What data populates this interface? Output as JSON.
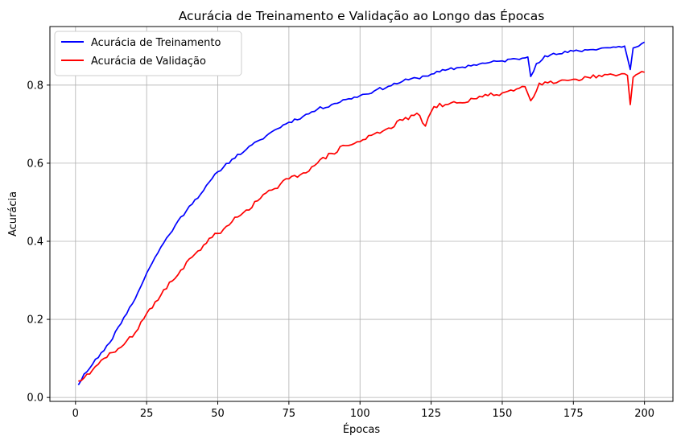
{
  "chart_data": {
    "type": "line",
    "title": "Acurácia de Treinamento e Validação ao Longo das Épocas",
    "xlabel": "Épocas",
    "ylabel": "Acurácia",
    "xlim": [
      -9,
      210
    ],
    "ylim": [
      -0.01,
      0.95
    ],
    "xticks": [
      0,
      25,
      50,
      75,
      100,
      125,
      150,
      175,
      200
    ],
    "yticks": [
      0.0,
      0.2,
      0.4,
      0.6,
      0.8
    ],
    "ytick_labels": [
      "0.0",
      "0.2",
      "0.4",
      "0.6",
      "0.8"
    ],
    "grid": true,
    "legend_position": "top-left",
    "x_start": 1,
    "x_end": 200,
    "series": [
      {
        "name": "Acurácia de Treinamento",
        "color": "#0000ff",
        "keypoints": [
          [
            1,
            0.032
          ],
          [
            3,
            0.06
          ],
          [
            5,
            0.075
          ],
          [
            7,
            0.098
          ],
          [
            10,
            0.12
          ],
          [
            12,
            0.14
          ],
          [
            15,
            0.18
          ],
          [
            17,
            0.205
          ],
          [
            20,
            0.24
          ],
          [
            22,
            0.27
          ],
          [
            25,
            0.318
          ],
          [
            27,
            0.345
          ],
          [
            30,
            0.385
          ],
          [
            35,
            0.44
          ],
          [
            40,
            0.49
          ],
          [
            45,
            0.53
          ],
          [
            50,
            0.578
          ],
          [
            55,
            0.61
          ],
          [
            60,
            0.635
          ],
          [
            65,
            0.66
          ],
          [
            70,
            0.685
          ],
          [
            75,
            0.705
          ],
          [
            80,
            0.72
          ],
          [
            85,
            0.738
          ],
          [
            90,
            0.75
          ],
          [
            95,
            0.763
          ],
          [
            100,
            0.773
          ],
          [
            105,
            0.785
          ],
          [
            110,
            0.797
          ],
          [
            115,
            0.81
          ],
          [
            120,
            0.818
          ],
          [
            125,
            0.828
          ],
          [
            130,
            0.838
          ],
          [
            135,
            0.845
          ],
          [
            140,
            0.852
          ],
          [
            145,
            0.857
          ],
          [
            150,
            0.862
          ],
          [
            155,
            0.867
          ],
          [
            159,
            0.872
          ],
          [
            160,
            0.822
          ],
          [
            162,
            0.855
          ],
          [
            165,
            0.875
          ],
          [
            170,
            0.88
          ],
          [
            175,
            0.887
          ],
          [
            180,
            0.89
          ],
          [
            185,
            0.895
          ],
          [
            190,
            0.897
          ],
          [
            193,
            0.9
          ],
          [
            195,
            0.84
          ],
          [
            196,
            0.895
          ],
          [
            198,
            0.9
          ],
          [
            200,
            0.91
          ]
        ],
        "noise": 0.004,
        "seed": 11
      },
      {
        "name": "Acurácia de Validação",
        "color": "#ff0000",
        "keypoints": [
          [
            1,
            0.042
          ],
          [
            3,
            0.05
          ],
          [
            5,
            0.06
          ],
          [
            8,
            0.085
          ],
          [
            10,
            0.1
          ],
          [
            13,
            0.115
          ],
          [
            15,
            0.125
          ],
          [
            18,
            0.145
          ],
          [
            20,
            0.155
          ],
          [
            22,
            0.175
          ],
          [
            25,
            0.215
          ],
          [
            28,
            0.245
          ],
          [
            30,
            0.262
          ],
          [
            33,
            0.295
          ],
          [
            35,
            0.305
          ],
          [
            38,
            0.33
          ],
          [
            40,
            0.355
          ],
          [
            43,
            0.375
          ],
          [
            45,
            0.39
          ],
          [
            48,
            0.41
          ],
          [
            50,
            0.42
          ],
          [
            55,
            0.45
          ],
          [
            60,
            0.48
          ],
          [
            65,
            0.51
          ],
          [
            70,
            0.535
          ],
          [
            75,
            0.56
          ],
          [
            80,
            0.575
          ],
          [
            85,
            0.6
          ],
          [
            90,
            0.625
          ],
          [
            95,
            0.645
          ],
          [
            100,
            0.655
          ],
          [
            105,
            0.675
          ],
          [
            110,
            0.69
          ],
          [
            115,
            0.71
          ],
          [
            120,
            0.728
          ],
          [
            123,
            0.695
          ],
          [
            126,
            0.745
          ],
          [
            130,
            0.75
          ],
          [
            135,
            0.755
          ],
          [
            140,
            0.765
          ],
          [
            145,
            0.773
          ],
          [
            150,
            0.78
          ],
          [
            155,
            0.79
          ],
          [
            158,
            0.796
          ],
          [
            160,
            0.76
          ],
          [
            163,
            0.805
          ],
          [
            165,
            0.808
          ],
          [
            170,
            0.81
          ],
          [
            175,
            0.815
          ],
          [
            180,
            0.82
          ],
          [
            185,
            0.822
          ],
          [
            190,
            0.824
          ],
          [
            194,
            0.825
          ],
          [
            195,
            0.75
          ],
          [
            196,
            0.82
          ],
          [
            198,
            0.83
          ],
          [
            200,
            0.833
          ]
        ],
        "noise": 0.006,
        "seed": 29
      }
    ]
  }
}
